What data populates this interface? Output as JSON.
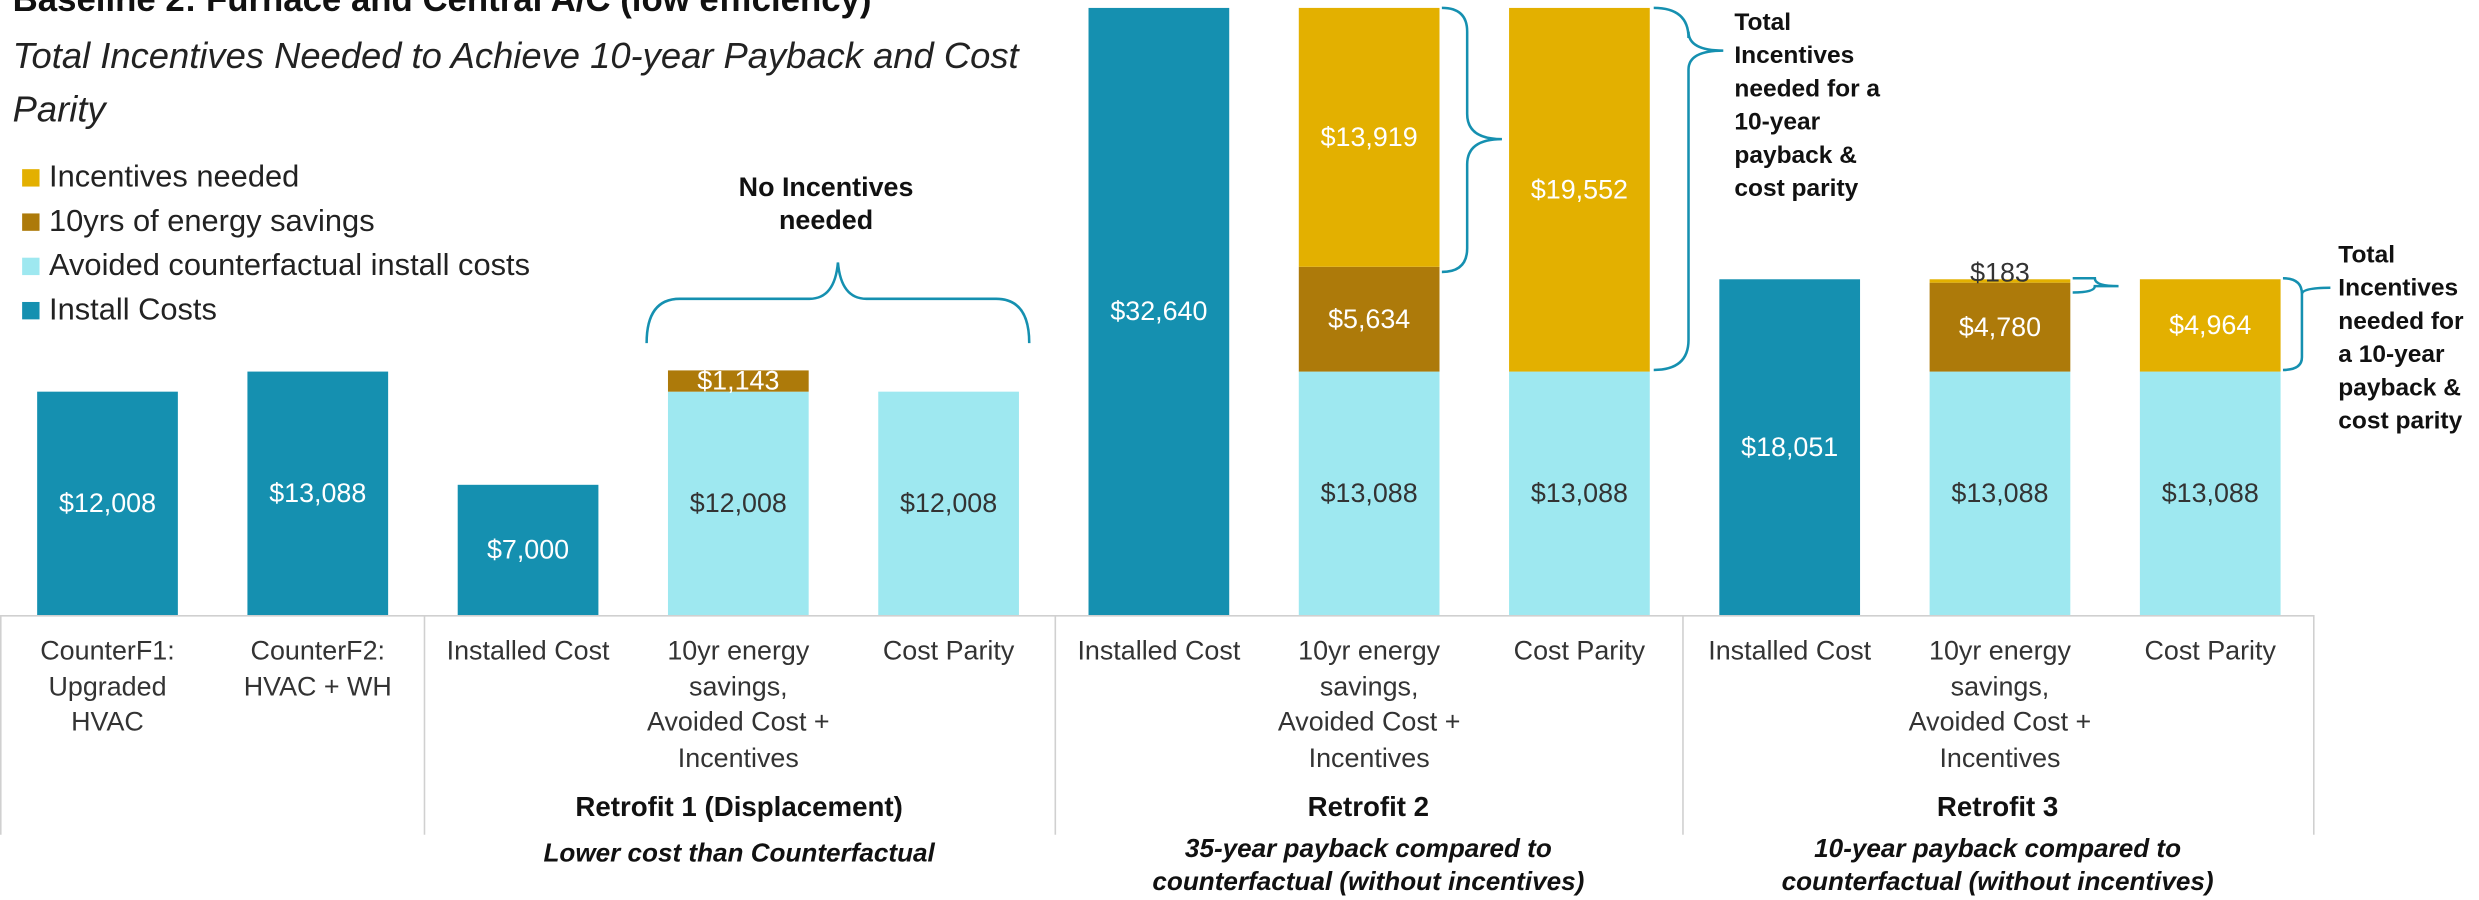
{
  "chart_data": {
    "type": "stacked_bar",
    "title": "Baseline 2: Furnace and Central A/C (low efficiency)",
    "subtitle": "Total Incentives Needed to Achieve 10-year Payback and Cost Parity",
    "categories": [
      "CounterF1: Upgraded HVAC",
      "CounterF2: HVAC + WH",
      "Installed Cost",
      "10yr energy savings, Avoided Cost + Incentives",
      "Cost Parity",
      "Installed Cost",
      "10yr energy savings, Avoided Cost + Incentives",
      "Cost Parity",
      "Installed Cost",
      "10yr energy savings, Avoided Cost + Incentives",
      "Cost Parity"
    ],
    "series": [
      {
        "name": "Install Costs",
        "color": "#1590b0",
        "values": [
          12008,
          13088,
          7000,
          null,
          null,
          32640,
          null,
          null,
          18051,
          null,
          null
        ],
        "value_labels": [
          "$12,008",
          "$13,088",
          "$7,000",
          null,
          null,
          "$32,640",
          null,
          null,
          "$18,051",
          null,
          null
        ]
      },
      {
        "name": "Avoided counterfactual install costs",
        "color": "#9ee8f0",
        "values": [
          null,
          null,
          null,
          12008,
          12008,
          null,
          13088,
          13088,
          null,
          13088,
          13088
        ],
        "value_labels": [
          null,
          null,
          null,
          "$12,008",
          "$12,008",
          null,
          "$13,088",
          "$13,088",
          null,
          "$13,088",
          "$13,088"
        ]
      },
      {
        "name": "10yrs of energy savings",
        "color": "#ad7a0a",
        "values": [
          null,
          null,
          null,
          1143,
          null,
          null,
          5634,
          null,
          null,
          4780,
          null
        ],
        "value_labels": [
          null,
          null,
          null,
          "$1,143",
          null,
          null,
          "$5,634",
          null,
          null,
          "$4,780",
          null
        ]
      },
      {
        "name": "Incentives needed",
        "color": "#e3b000",
        "values": [
          null,
          null,
          null,
          null,
          null,
          null,
          13919,
          19552,
          null,
          183,
          4964
        ],
        "value_labels": [
          null,
          null,
          null,
          null,
          null,
          null,
          "$13,919",
          "$19,552",
          null,
          "$183",
          "$4,964"
        ]
      }
    ],
    "groups": [
      {
        "name": "Retrofit 1 (Displacement)",
        "subtitle": "Lower cost than Counterfactual"
      },
      {
        "name": "Retrofit 2",
        "subtitle": "35-year payback compared to counterfactual (without incentives)"
      },
      {
        "name": "Retrofit 3",
        "subtitle": "10-year payback compared to counterfactual (without incentives)"
      }
    ],
    "annotations": [
      "No Incentives needed",
      "Total Incentives needed for a 10-year payback & cost parity",
      "Total Incentives needed for a 10-year payback & cost parity"
    ]
  }
}
